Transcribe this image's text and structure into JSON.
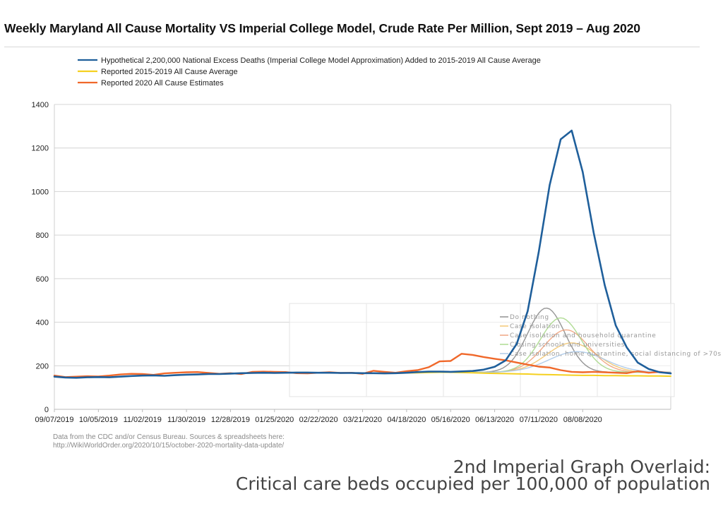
{
  "chart_data": {
    "type": "line",
    "title": "Weekly Maryland All Cause Mortality VS Imperial College Model, Crude Rate Per Million, Sept 2019 – Aug 2020",
    "xlabel": "",
    "ylabel": "",
    "ylim": [
      0,
      1400
    ],
    "yticks": [
      0,
      200,
      400,
      600,
      800,
      1000,
      1200,
      1400
    ],
    "x_tick_labels": [
      "09/07/2019",
      "10/05/2019",
      "11/02/2019",
      "11/30/2019",
      "12/28/2019",
      "01/25/2020",
      "02/22/2020",
      "03/21/2020",
      "04/18/2020",
      "05/16/2020",
      "06/13/2020",
      "07/11/2020",
      "08/08/2020"
    ],
    "grid": true,
    "legend_position": "top-left",
    "series": [
      {
        "name": "Hypothetical 2,200,000 National Excess Deaths (Imperial College Model Approximation) Added to 2015-2019 All Cause Average",
        "color": "#1f5f9b",
        "values": [
          150,
          146,
          145,
          147,
          148,
          147,
          150,
          153,
          155,
          156,
          154,
          157,
          159,
          160,
          162,
          162,
          164,
          166,
          167,
          168,
          167,
          168,
          169,
          169,
          168,
          168,
          167,
          167,
          166,
          166,
          165,
          166,
          168,
          171,
          173,
          173,
          172,
          174,
          176,
          182,
          195,
          225,
          300,
          450,
          720,
          1030,
          1240,
          1280,
          1090,
          810,
          570,
          385,
          285,
          215,
          185,
          170,
          165
        ]
      },
      {
        "name": "Reported 2015-2019 All Cause Average",
        "color": "#f5d020",
        "values": [
          150,
          146,
          145,
          147,
          148,
          147,
          150,
          153,
          155,
          156,
          154,
          157,
          159,
          160,
          162,
          162,
          164,
          166,
          167,
          168,
          167,
          168,
          169,
          169,
          168,
          168,
          167,
          167,
          166,
          166,
          165,
          166,
          167,
          168,
          169,
          170,
          170,
          169,
          168,
          166,
          165,
          164,
          163,
          162,
          160,
          159,
          158,
          157,
          156,
          156,
          155,
          155,
          154,
          154,
          153,
          153,
          152
        ]
      },
      {
        "name": "Reported 2020 All Cause Estimates",
        "color": "#f0682a",
        "values": [
          155,
          148,
          150,
          152,
          151,
          155,
          160,
          163,
          162,
          158,
          165,
          168,
          170,
          171,
          167,
          163,
          166,
          162,
          172,
          173,
          172,
          171,
          166,
          165,
          168,
          170,
          167,
          168,
          163,
          177,
          172,
          168,
          175,
          180,
          193,
          220,
          222,
          255,
          250,
          240,
          232,
          225,
          215,
          205,
          196,
          192,
          180,
          172,
          170,
          172,
          170,
          168,
          166,
          175,
          168,
          172,
          166
        ]
      }
    ],
    "overlay": {
      "caption_line1": "2nd Imperial Graph Overlaid:",
      "caption_line2": "Critical care beds occupied per 100,000 of population",
      "legend": [
        "Do nothing",
        "Case isolation",
        "Case isolation and household quarantine",
        "Closing schools and universities",
        "Case isolation, home quarantine, social distancing of >70s"
      ],
      "colors": [
        "#8a8a8a",
        "#f2c46b",
        "#f0a07a",
        "#a8d88a",
        "#aac8e8"
      ],
      "peaks": [
        465,
        305,
        365,
        420,
        265
      ]
    }
  },
  "source_note": {
    "line1": "Data from the CDC and/or Census Bureau. Sources & spreadsheets here:",
    "line2": "http://WikiWorldOrder.org/2020/10/15/october-2020-mortality-data-update/"
  }
}
